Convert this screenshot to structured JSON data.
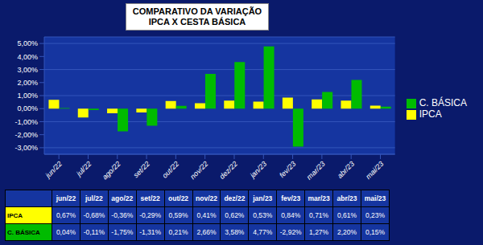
{
  "chart_data": {
    "type": "bar",
    "title": "COMPARATIVO DA VARIAÇÃO\nIPCA X CESTA BÁSICA",
    "categories": [
      "jun/22",
      "jul/22",
      "ago/22",
      "set/22",
      "out/22",
      "nov/22",
      "dez/22",
      "jan/23",
      "fev/23",
      "mar/23",
      "abr/23",
      "mai/23"
    ],
    "series": [
      {
        "name": "IPCA",
        "color": "#FFFF00",
        "values": [
          0.67,
          -0.68,
          -0.36,
          -0.29,
          0.59,
          0.41,
          0.62,
          0.53,
          0.84,
          0.71,
          0.61,
          0.23
        ],
        "value_labels": [
          "0,67%",
          "-0,68%",
          "-0,36%",
          "-0,29%",
          "0,59%",
          "0,41%",
          "0,62%",
          "0,53%",
          "0,84%",
          "0,71%",
          "0,61%",
          "0,23%"
        ]
      },
      {
        "name": "C. BÁSICA",
        "color": "#00BB00",
        "values": [
          0.04,
          -0.11,
          -1.75,
          -1.31,
          0.21,
          2.66,
          3.58,
          4.77,
          -2.92,
          1.27,
          2.2,
          0.15
        ],
        "value_labels": [
          "0,04%",
          "-0,11%",
          "-1,75%",
          "-1,31%",
          "0,21%",
          "2,66%",
          "3,58%",
          "4,77%",
          "-2,92%",
          "1,27%",
          "2,20%",
          "0,15%"
        ]
      }
    ],
    "ylim": [
      -3.5,
      5.5
    ],
    "yticks": [
      {
        "value": -3.0,
        "label": "-3,00%"
      },
      {
        "value": -2.0,
        "label": "-2,00%"
      },
      {
        "value": -1.0,
        "label": "-1,00%"
      },
      {
        "value": 0.0,
        "label": "0,00%"
      },
      {
        "value": 1.0,
        "label": "1,00%"
      },
      {
        "value": 2.0,
        "label": "2,00%"
      },
      {
        "value": 3.0,
        "label": "3,00%"
      },
      {
        "value": 4.0,
        "label": "4,00%"
      },
      {
        "value": 5.0,
        "label": "5,00%"
      }
    ],
    "grid": true,
    "legend": "right"
  }
}
